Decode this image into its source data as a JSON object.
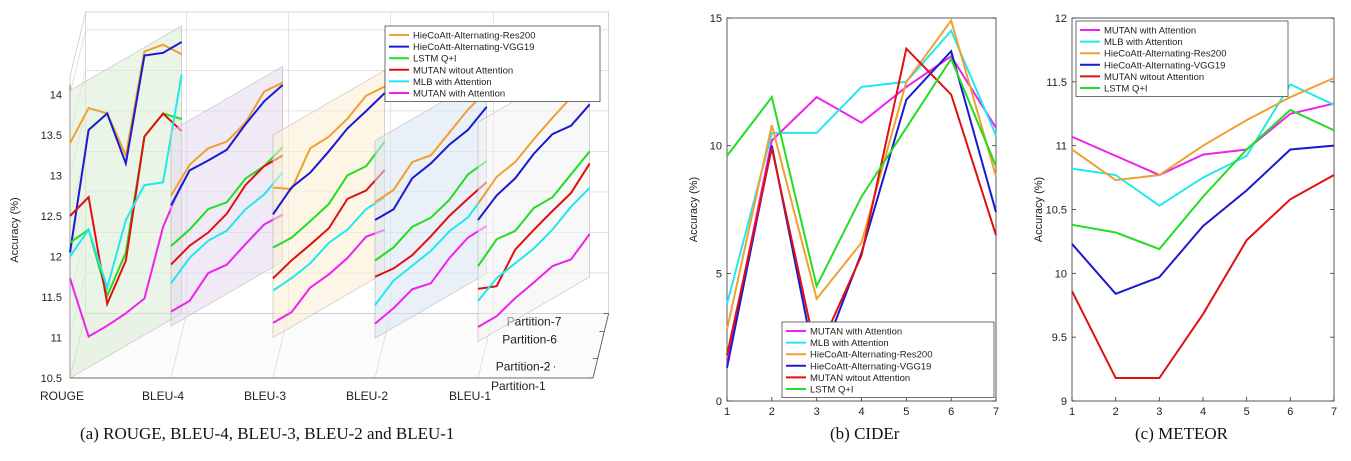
{
  "captions": {
    "a": "(a) ROUGE, BLEU-4, BLEU-3, BLEU-2 and BLEU-1",
    "b": "(b) CIDEr",
    "c": "(c) METEOR"
  },
  "colors": {
    "HieCoAtt-Alternating-Res200": "#f0a030",
    "HieCoAtt-Alternating-VGG19": "#1a1ad0",
    "LSTM Q+I": "#22dd22",
    "MUTAN witout Attention": "#e01010",
    "MLB with Attention": "#22e8ee",
    "MUTAN with Attention": "#ee22ee"
  },
  "chart_data": [
    {
      "type": "line",
      "projection": "3d",
      "ylabel": "Accuracy (%)",
      "zlim": [
        10.5,
        14
      ],
      "zticks": [
        "10.5",
        "11",
        "11.5",
        "12",
        "12.5",
        "13",
        "13.5",
        "14"
      ],
      "metrics": [
        "ROUGE",
        "BLEU-4",
        "BLEU-3",
        "BLEU-2",
        "BLEU-1"
      ],
      "partitions": [
        "Partition-1",
        "Partition-2",
        "Partition-6",
        "Partition-7"
      ],
      "ellipsis": ". . .",
      "legend_position": "top-right",
      "series": [
        {
          "name": "HieCoAtt-Alternating-Res200",
          "values": [
            [
              13.4,
              13.7,
              13.5,
              12.85,
              14.0,
              13.95,
              13.7
            ],
            [
              12.75,
              13.0,
              13.07,
              13.02,
              13.12,
              13.37,
              13.35
            ],
            [
              12.85,
              12.7,
              13.07,
              13.08,
              13.17,
              13.32,
              13.3
            ],
            [
              12.67,
              12.69,
              12.9,
              12.85,
              13.0,
              13.15,
              13.25
            ],
            [
              12.65,
              12.85,
              12.9,
              13.05,
              13.18,
              13.3,
              13.48
            ]
          ]
        },
        {
          "name": "HieCoAtt-Alternating-VGG19",
          "values": [
            [
              12.05,
              13.43,
              13.5,
              12.75,
              13.95,
              13.85,
              13.85
            ],
            [
              12.63,
              12.93,
              12.92,
              12.92,
              13.1,
              13.25,
              13.32
            ],
            [
              12.52,
              12.72,
              12.77,
              12.9,
              13.05,
              13.13,
              13.22
            ],
            [
              12.45,
              12.45,
              12.7,
              12.75,
              12.85,
              12.9,
              13.05
            ],
            [
              12.45,
              12.62,
              12.7,
              12.87,
              12.98,
              12.95,
              13.08
            ]
          ]
        },
        {
          "name": "LSTM Q+I",
          "values": [
            [
              12.17,
              12.2,
              11.25,
              11.65,
              12.95,
              13.1,
              12.9
            ],
            [
              12.13,
              12.2,
              12.32,
              12.27,
              12.43,
              12.45,
              12.55
            ],
            [
              12.11,
              12.1,
              12.17,
              12.25,
              12.47,
              12.45,
              12.62
            ],
            [
              11.95,
              11.98,
              12.1,
              12.08,
              12.17,
              12.35,
              12.38
            ],
            [
              11.88,
              12.08,
              12.05,
              12.2,
              12.2,
              12.35,
              12.5
            ]
          ]
        },
        {
          "name": "MUTAN witout Attention",
          "values": [
            [
              12.5,
              12.6,
              11.15,
              11.55,
              12.95,
              13.1,
              12.75
            ],
            [
              11.9,
              12.0,
              12.03,
              12.13,
              12.35,
              12.45,
              12.45
            ],
            [
              11.73,
              11.82,
              11.88,
              11.95,
              12.18,
              12.15,
              12.27
            ],
            [
              11.75,
              11.72,
              11.75,
              11.85,
              11.97,
              12.05,
              12.12
            ],
            [
              11.6,
              11.5,
              11.82,
              11.93,
              12.03,
              12.12,
              12.35
            ]
          ]
        },
        {
          "name": "MLB with Attention",
          "values": [
            [
              12.0,
              12.2,
              11.35,
              12.05,
              12.35,
              12.25,
              13.45
            ],
            [
              11.67,
              11.85,
              11.93,
              11.92,
              12.05,
              12.1,
              12.24
            ],
            [
              11.58,
              11.6,
              11.65,
              11.77,
              11.8,
              11.92,
              11.93
            ],
            [
              11.4,
              11.57,
              11.62,
              11.67,
              11.78,
              11.82,
              12.0
            ],
            [
              11.45,
              11.6,
              11.65,
              11.7,
              11.8,
              11.95,
              12.05
            ]
          ]
        },
        {
          "name": "MUTAN with Attention",
          "values": [
            [
              11.73,
              10.88,
              10.88,
              10.9,
              10.95,
              11.7,
              12.1
            ],
            [
              11.32,
              11.32,
              11.53,
              11.5,
              11.62,
              11.73,
              11.72
            ],
            [
              11.18,
              11.18,
              11.35,
              11.38,
              11.45,
              11.58,
              11.53
            ],
            [
              11.17,
              11.23,
              11.33,
              11.27,
              11.45,
              11.57,
              11.58
            ],
            [
              11.13,
              11.13,
              11.22,
              11.28,
              11.35,
              11.3,
              11.48
            ]
          ]
        }
      ]
    },
    {
      "type": "line",
      "ylabel": "Accuracy (%)",
      "x": [
        1,
        2,
        3,
        4,
        5,
        6,
        7
      ],
      "xlim": [
        1,
        7
      ],
      "ylim": [
        0,
        15
      ],
      "yticks": [
        "0",
        "5",
        "10",
        "15"
      ],
      "legend_position": "bottom-right",
      "series": [
        {
          "name": "MUTAN with Attention",
          "values": [
            1.6,
            10.2,
            11.9,
            10.9,
            12.3,
            13.5,
            10.7
          ]
        },
        {
          "name": "MLB with Attention",
          "values": [
            3.8,
            10.5,
            10.5,
            12.3,
            12.5,
            14.5,
            10.4
          ]
        },
        {
          "name": "HieCoAtt-Alternating-Res200",
          "values": [
            2.8,
            10.8,
            4.0,
            6.2,
            12.5,
            14.9,
            8.8
          ]
        },
        {
          "name": "HieCoAtt-Alternating-VGG19",
          "values": [
            1.3,
            10.0,
            1.2,
            5.8,
            11.8,
            13.7,
            7.4
          ]
        },
        {
          "name": "MUTAN witout Attention",
          "values": [
            1.8,
            9.9,
            1.8,
            5.7,
            13.8,
            12.0,
            6.5
          ]
        },
        {
          "name": "LSTM Q+I",
          "values": [
            9.6,
            11.9,
            4.5,
            8.0,
            10.7,
            13.4,
            9.2
          ]
        }
      ]
    },
    {
      "type": "line",
      "ylabel": "Accuracy (%)",
      "x": [
        1,
        2,
        3,
        4,
        5,
        6,
        7
      ],
      "xlim": [
        1,
        7
      ],
      "ylim": [
        9,
        12
      ],
      "yticks": [
        "9",
        "9.5",
        "10",
        "10.5",
        "11",
        "11.5",
        "12"
      ],
      "legend_position": "top-left",
      "series": [
        {
          "name": "MUTAN with Attention",
          "values": [
            11.07,
            10.92,
            10.77,
            10.93,
            10.97,
            11.25,
            11.33
          ]
        },
        {
          "name": "MLB with Attention",
          "values": [
            10.82,
            10.77,
            10.53,
            10.75,
            10.92,
            11.48,
            11.32
          ]
        },
        {
          "name": "HieCoAtt-Alternating-Res200",
          "values": [
            10.97,
            10.73,
            10.77,
            11.0,
            11.2,
            11.38,
            11.53
          ]
        },
        {
          "name": "HieCoAtt-Alternating-VGG19",
          "values": [
            10.23,
            9.84,
            9.97,
            10.37,
            10.65,
            10.97,
            11.0
          ]
        },
        {
          "name": "MUTAN witout Attention",
          "values": [
            9.86,
            9.18,
            9.18,
            9.68,
            10.26,
            10.58,
            10.77
          ]
        },
        {
          "name": "LSTM Q+I",
          "values": [
            10.38,
            10.32,
            10.19,
            10.6,
            10.97,
            11.28,
            11.12
          ]
        }
      ]
    }
  ]
}
